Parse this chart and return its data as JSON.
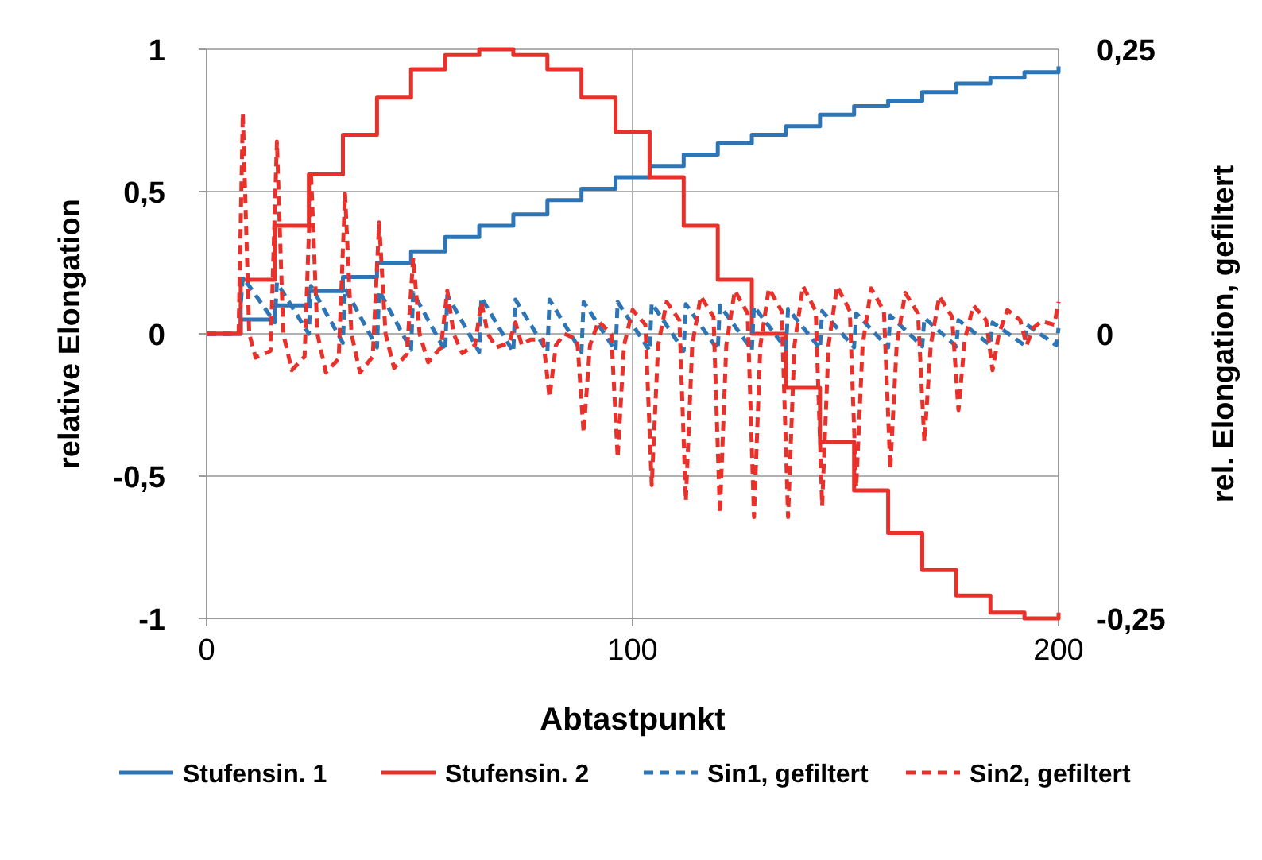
{
  "chart_data": {
    "type": "line",
    "xlabel": "Abtastpunkt",
    "ylabel": "relative Elongation",
    "y2label": "rel. Elongation, gefiltert",
    "xlim": [
      0,
      200
    ],
    "xticks": [
      0,
      100,
      200
    ],
    "ylim": [
      -1,
      1
    ],
    "yticks": [
      {
        "value": -1,
        "label": "-1"
      },
      {
        "value": -0.5,
        "label": "-0,5"
      },
      {
        "value": 0,
        "label": "0"
      },
      {
        "value": 0.5,
        "label": "0,5"
      },
      {
        "value": 1,
        "label": "1"
      }
    ],
    "y2lim": [
      -0.25,
      0.25
    ],
    "y2ticks": [
      {
        "value": -0.25,
        "label": "-0,25"
      },
      {
        "value": 0,
        "label": "0"
      },
      {
        "value": 0.25,
        "label": "0,25"
      }
    ],
    "grid": true,
    "legend": "bottom",
    "line_style": "solid",
    "series": [
      {
        "name": "Stufensin. 1",
        "type": "step",
        "color": "#2e75b6",
        "x": [
          0,
          8,
          16,
          24,
          32,
          40,
          48,
          56,
          64,
          72,
          80,
          88,
          96,
          104,
          112,
          120,
          128,
          136,
          144,
          152,
          160,
          168,
          176,
          184,
          192,
          200
        ],
        "values": [
          0,
          0.05,
          0.1,
          0.15,
          0.2,
          0.25,
          0.29,
          0.34,
          0.38,
          0.42,
          0.47,
          0.51,
          0.55,
          0.59,
          0.63,
          0.67,
          0.7,
          0.73,
          0.77,
          0.8,
          0.82,
          0.85,
          0.88,
          0.9,
          0.92,
          0.94
        ]
      },
      {
        "name": "Stufensin. 2",
        "type": "step",
        "color": "#e8312a",
        "x": [
          0,
          8,
          16,
          24,
          32,
          40,
          48,
          56,
          64,
          72,
          80,
          88,
          96,
          104,
          112,
          120,
          128,
          136,
          144,
          152,
          160,
          168,
          176,
          184,
          192,
          200
        ],
        "values": [
          0,
          0.19,
          0.38,
          0.56,
          0.7,
          0.83,
          0.93,
          0.98,
          1.0,
          0.98,
          0.93,
          0.83,
          0.71,
          0.55,
          0.38,
          0.19,
          0,
          -0.19,
          -0.38,
          -0.55,
          -0.7,
          -0.83,
          -0.92,
          -0.98,
          -1.0,
          -0.98
        ]
      },
      {
        "name": "Sin1, gefiltert",
        "axis": "y2",
        "line_style": "dashed",
        "color": "#2e75b6",
        "x": [
          0,
          7.5,
          8.5,
          16,
          16.5,
          24,
          24.5,
          32,
          32.5,
          40,
          40.5,
          48,
          48.5,
          56,
          56.5,
          64,
          64.5,
          72,
          72.5,
          80,
          80.5,
          88,
          88.5,
          96,
          96.5,
          104,
          104.5,
          112,
          112.5,
          120,
          120.5,
          128,
          128.5,
          136,
          136.5,
          144,
          144.5,
          152,
          152.5,
          160,
          160.5,
          168,
          168.5,
          176,
          176.5,
          184,
          184.5,
          192,
          192.5,
          199.5,
          200
        ],
        "values": [
          0,
          0,
          0.05,
          0.01,
          0.045,
          0,
          0.042,
          -0.008,
          0.04,
          -0.012,
          0.038,
          -0.014,
          0.036,
          -0.015,
          0.034,
          -0.016,
          0.032,
          -0.016,
          0.03,
          -0.016,
          0.03,
          -0.016,
          0.028,
          -0.015,
          0.028,
          -0.015,
          0.027,
          -0.015,
          0.026,
          -0.014,
          0.025,
          -0.014,
          0.024,
          -0.013,
          0.022,
          -0.013,
          0.02,
          -0.012,
          0.018,
          -0.012,
          0.016,
          -0.011,
          0.014,
          -0.011,
          0.012,
          -0.01,
          0.01,
          -0.01,
          0.008,
          -0.01,
          0.005
        ]
      },
      {
        "name": "Sin2, gefiltert",
        "axis": "y2",
        "line_style": "dashed",
        "color": "#e8312a",
        "x": [
          0,
          7.5,
          8.5,
          10,
          11.5,
          15,
          16.5,
          18,
          20,
          23,
          24.5,
          26,
          28,
          31,
          32.5,
          34,
          36,
          39,
          40.5,
          42,
          44,
          47,
          48.5,
          50,
          52,
          55,
          56.5,
          58,
          60,
          63,
          64.5,
          66,
          68,
          71,
          72.5,
          74,
          76,
          79,
          80.5,
          82,
          84,
          87,
          88.5,
          90,
          92,
          95,
          96.5,
          98,
          100,
          103,
          104.5,
          106,
          108,
          111,
          112.5,
          114,
          116,
          119,
          120.5,
          122,
          124,
          127,
          128.5,
          130,
          132,
          135,
          136.5,
          138,
          140,
          143,
          144.5,
          146,
          148,
          151,
          152.5,
          154,
          156,
          159,
          160.5,
          162,
          164,
          167,
          168.5,
          170,
          172,
          175,
          176.5,
          178,
          180,
          183,
          184.5,
          186,
          188,
          191,
          192.5,
          194,
          196,
          199,
          200
        ],
        "values": [
          0,
          0,
          0.194,
          0,
          -0.021,
          -0.015,
          0.169,
          0,
          -0.032,
          -0.02,
          0.142,
          0,
          -0.034,
          -0.022,
          0.123,
          0,
          -0.034,
          -0.02,
          0.098,
          0,
          -0.03,
          -0.018,
          0.067,
          0,
          -0.025,
          -0.012,
          0.038,
          0,
          -0.017,
          -0.01,
          0.028,
          0,
          -0.012,
          -0.008,
          0.01,
          -0.01,
          -0.005,
          -0.005,
          -0.056,
          -0.01,
          0,
          -0.005,
          -0.087,
          -0.01,
          0.011,
          0,
          -0.109,
          -0.01,
          0.021,
          0.008,
          -0.133,
          -0.01,
          0.028,
          0.012,
          -0.147,
          -0.01,
          0.033,
          0.015,
          -0.158,
          -0.01,
          0.038,
          0.018,
          -0.161,
          -0.01,
          0.04,
          0.02,
          -0.161,
          -0.01,
          0.042,
          0.02,
          -0.151,
          -0.01,
          0.042,
          0.02,
          -0.135,
          -0.01,
          0.04,
          0.02,
          -0.119,
          -0.01,
          0.036,
          0.018,
          -0.095,
          -0.01,
          0.033,
          0.015,
          -0.067,
          -0.005,
          0.025,
          0.012,
          -0.032,
          0,
          0.021,
          0.012,
          -0.01,
          0.005,
          0.011,
          0.008,
          0.028
        ]
      }
    ]
  }
}
